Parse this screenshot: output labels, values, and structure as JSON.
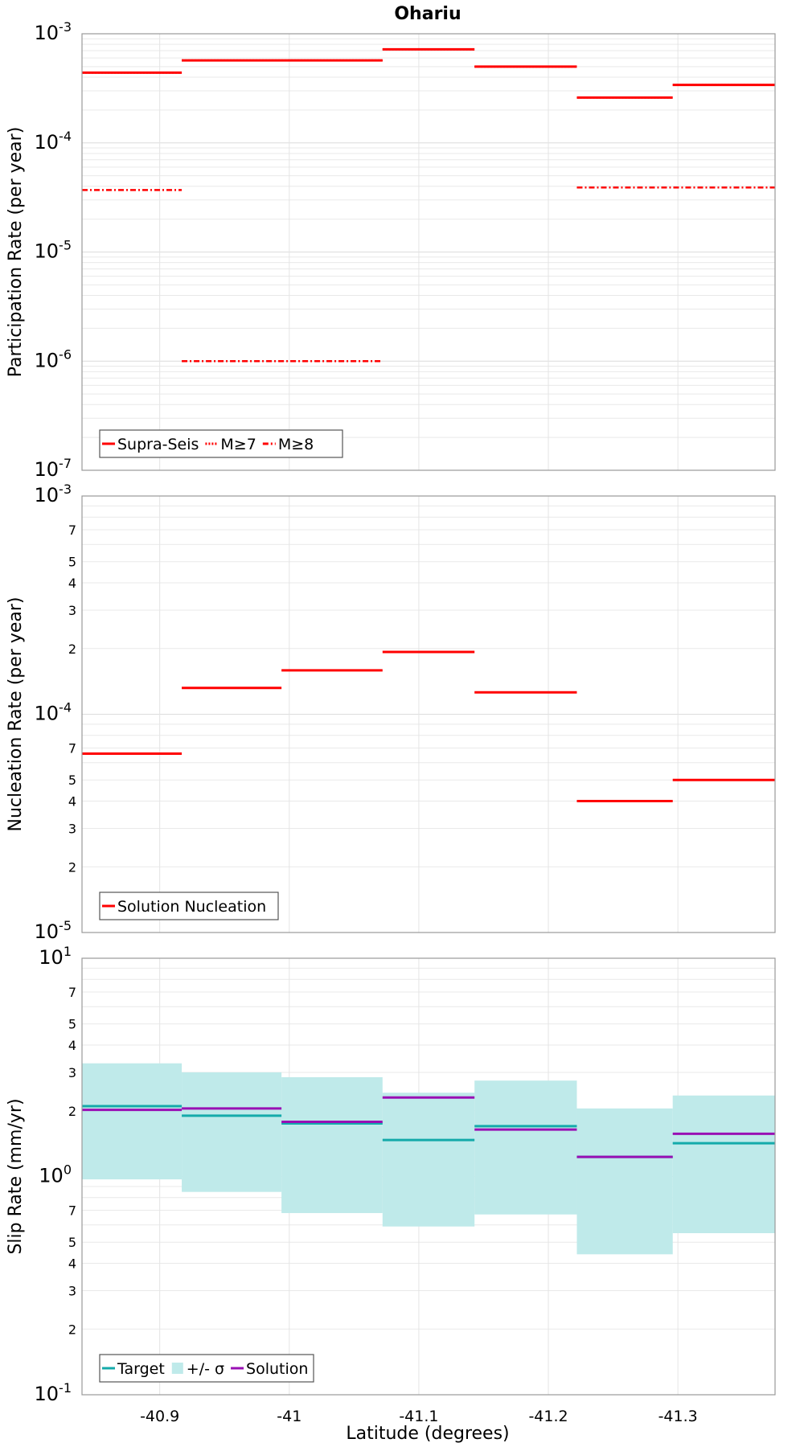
{
  "chart_data": {
    "title": "Ohariu",
    "xlabel": "Latitude (degrees)",
    "xlim": [
      -40.84,
      -41.375
    ],
    "xticks": [
      -40.9,
      -41,
      -41.1,
      -41.2,
      -41.3
    ],
    "xtick_labels": [
      "-40.9",
      "-41",
      "-41.1",
      "-41.2",
      "-41.3"
    ],
    "grid": true,
    "panels": [
      {
        "type": "line",
        "ylabel": "Participation Rate (per year)",
        "yscale": "log",
        "ylim": [
          1e-07,
          0.001
        ],
        "major_ticks": [
          {
            "value": 0.001,
            "base": "10",
            "exp": "-3"
          },
          {
            "value": 0.0001,
            "base": "10",
            "exp": "-4"
          },
          {
            "value": 1e-05,
            "base": "10",
            "exp": "-5"
          },
          {
            "value": 1e-06,
            "base": "10",
            "exp": "-6"
          },
          {
            "value": 1e-07,
            "base": "10",
            "exp": "-7"
          }
        ],
        "minor_ticks": [],
        "legend_position": "bottom-left",
        "series": [
          {
            "name": "Supra-Seis",
            "color": "#ff0000",
            "dash": "solid",
            "segments": [
              {
                "x0": -40.84,
                "x1": -40.917,
                "y": 0.00044
              },
              {
                "x0": -40.917,
                "x1": -41.072,
                "y": 0.00057
              },
              {
                "x0": -41.072,
                "x1": -41.143,
                "y": 0.00072
              },
              {
                "x0": -41.143,
                "x1": -41.222,
                "y": 0.0005
              },
              {
                "x0": -41.222,
                "x1": -41.296,
                "y": 0.00026
              },
              {
                "x0": -41.296,
                "x1": -41.375,
                "y": 0.00034
              }
            ]
          },
          {
            "name": "M≥7",
            "color": "#ff0000",
            "dash": "dotted",
            "segments": [
              {
                "x0": -40.84,
                "x1": -40.917,
                "y": 0.00044
              },
              {
                "x0": -40.917,
                "x1": -41.072,
                "y": 0.00057
              },
              {
                "x0": -41.072,
                "x1": -41.143,
                "y": 0.00072
              },
              {
                "x0": -41.143,
                "x1": -41.222,
                "y": 0.0005
              },
              {
                "x0": -41.222,
                "x1": -41.296,
                "y": 0.00026
              },
              {
                "x0": -41.296,
                "x1": -41.375,
                "y": 0.00034
              }
            ]
          },
          {
            "name": "M≥8",
            "color": "#ff0000",
            "dash": "dashdot",
            "segments": [
              {
                "x0": -40.84,
                "x1": -40.917,
                "y": 3.7e-05
              },
              {
                "x0": -40.917,
                "x1": -41.072,
                "y": 1e-06
              },
              {
                "x0": -41.222,
                "x1": -41.375,
                "y": 3.9e-05
              }
            ]
          }
        ]
      },
      {
        "type": "line",
        "ylabel": "Nucleation Rate (per year)",
        "yscale": "log",
        "ylim": [
          1e-05,
          0.001
        ],
        "major_ticks": [
          {
            "value": 0.001,
            "base": "10",
            "exp": "-3"
          },
          {
            "value": 0.0001,
            "base": "10",
            "exp": "-4"
          },
          {
            "value": 1e-05,
            "base": "10",
            "exp": "-5"
          }
        ],
        "minor_ticks": [
          {
            "value": 0.0007,
            "label": "7"
          },
          {
            "value": 0.0005,
            "label": "5"
          },
          {
            "value": 0.0004,
            "label": "4"
          },
          {
            "value": 0.0003,
            "label": "3"
          },
          {
            "value": 0.0002,
            "label": "2"
          },
          {
            "value": 7e-05,
            "label": "7"
          },
          {
            "value": 5e-05,
            "label": "5"
          },
          {
            "value": 4e-05,
            "label": "4"
          },
          {
            "value": 3e-05,
            "label": "3"
          },
          {
            "value": 2e-05,
            "label": "2"
          }
        ],
        "legend_position": "bottom-left",
        "series": [
          {
            "name": "Solution Nucleation",
            "color": "#ff0000",
            "dash": "solid",
            "segments": [
              {
                "x0": -40.84,
                "x1": -40.917,
                "y": 6.6e-05
              },
              {
                "x0": -40.917,
                "x1": -40.994,
                "y": 0.000132
              },
              {
                "x0": -40.994,
                "x1": -41.072,
                "y": 0.000159
              },
              {
                "x0": -41.072,
                "x1": -41.143,
                "y": 0.000193
              },
              {
                "x0": -41.143,
                "x1": -41.222,
                "y": 0.000126
              },
              {
                "x0": -41.222,
                "x1": -41.296,
                "y": 4e-05
              },
              {
                "x0": -41.296,
                "x1": -41.375,
                "y": 5e-05
              }
            ]
          }
        ]
      },
      {
        "type": "line",
        "ylabel": "Slip Rate (mm/yr)",
        "yscale": "log",
        "ylim": [
          0.1,
          10
        ],
        "major_ticks": [
          {
            "value": 10,
            "base": "10",
            "exp": "1"
          },
          {
            "value": 1,
            "base": "10",
            "exp": "0"
          },
          {
            "value": 0.1,
            "base": "10",
            "exp": "-1"
          }
        ],
        "minor_ticks": [
          {
            "value": 7,
            "label": "7"
          },
          {
            "value": 5,
            "label": "5"
          },
          {
            "value": 4,
            "label": "4"
          },
          {
            "value": 3,
            "label": "3"
          },
          {
            "value": 2,
            "label": "2"
          },
          {
            "value": 0.7,
            "label": "7"
          },
          {
            "value": 0.5,
            "label": "5"
          },
          {
            "value": 0.4,
            "label": "4"
          },
          {
            "value": 0.3,
            "label": "3"
          },
          {
            "value": 0.2,
            "label": "2"
          }
        ],
        "legend_position": "bottom-left",
        "bands": [
          {
            "name": "+/- σ",
            "color": "#bfeaea",
            "segments": [
              {
                "x0": -40.84,
                "x1": -40.917,
                "low": 0.97,
                "high": 3.3
              },
              {
                "x0": -40.917,
                "x1": -40.994,
                "low": 0.85,
                "high": 3.0
              },
              {
                "x0": -40.994,
                "x1": -41.072,
                "low": 0.68,
                "high": 2.85
              },
              {
                "x0": -41.072,
                "x1": -41.143,
                "low": 0.59,
                "high": 2.42
              },
              {
                "x0": -41.143,
                "x1": -41.222,
                "low": 0.67,
                "high": 2.75
              },
              {
                "x0": -41.222,
                "x1": -41.296,
                "low": 0.44,
                "high": 2.05
              },
              {
                "x0": -41.296,
                "x1": -41.375,
                "low": 0.55,
                "high": 2.35
              }
            ]
          }
        ],
        "series": [
          {
            "name": "Target",
            "color": "#14aaaa",
            "dash": "solid",
            "segments": [
              {
                "x0": -40.84,
                "x1": -40.917,
                "y": 2.1
              },
              {
                "x0": -40.917,
                "x1": -40.994,
                "y": 1.9
              },
              {
                "x0": -40.994,
                "x1": -41.072,
                "y": 1.75
              },
              {
                "x0": -41.072,
                "x1": -41.143,
                "y": 1.47
              },
              {
                "x0": -41.143,
                "x1": -41.222,
                "y": 1.7
              },
              {
                "x0": -41.222,
                "x1": -41.296,
                "y": 1.23
              },
              {
                "x0": -41.296,
                "x1": -41.375,
                "y": 1.42
              }
            ]
          },
          {
            "name": "Solution",
            "color": "#9910b4",
            "dash": "solid",
            "segments": [
              {
                "x0": -40.84,
                "x1": -40.917,
                "y": 2.02
              },
              {
                "x0": -40.917,
                "x1": -40.994,
                "y": 2.05
              },
              {
                "x0": -40.994,
                "x1": -41.072,
                "y": 1.78
              },
              {
                "x0": -41.072,
                "x1": -41.143,
                "y": 2.3
              },
              {
                "x0": -41.143,
                "x1": -41.222,
                "y": 1.64
              },
              {
                "x0": -41.222,
                "x1": -41.296,
                "y": 1.23
              },
              {
                "x0": -41.296,
                "x1": -41.375,
                "y": 1.57
              }
            ]
          }
        ]
      }
    ]
  }
}
